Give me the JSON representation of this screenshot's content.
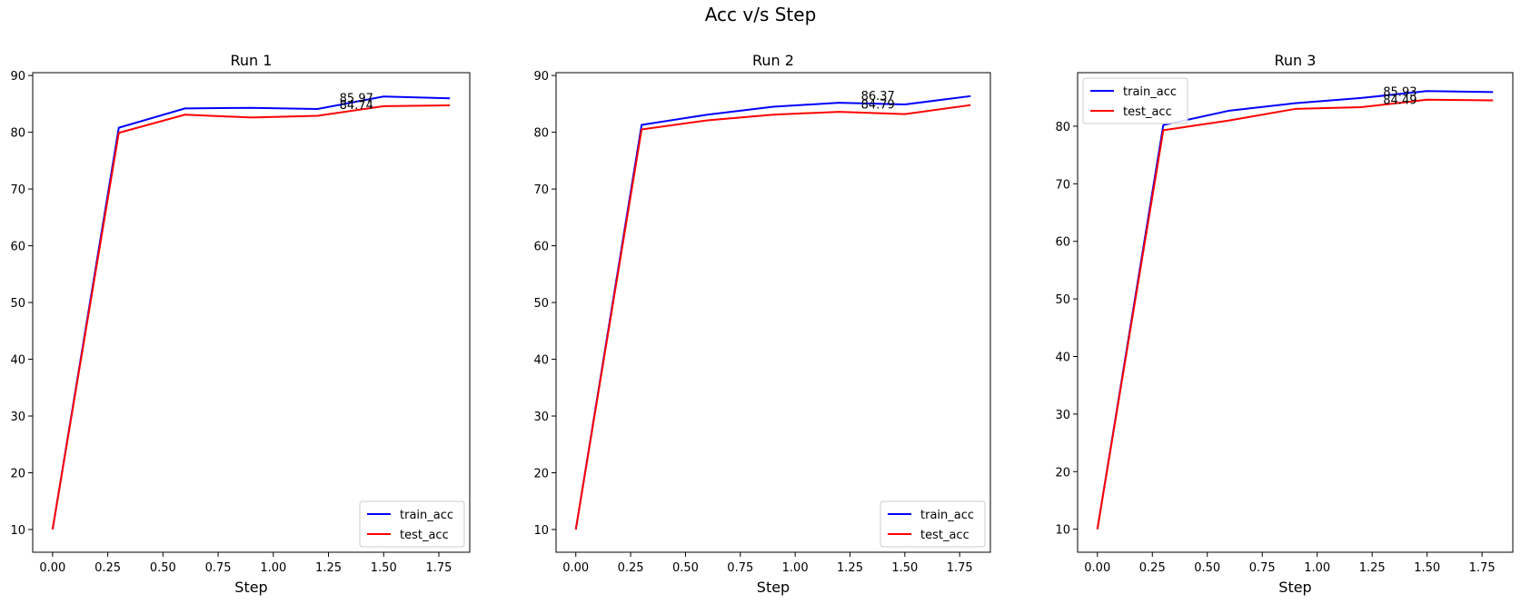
{
  "figure": {
    "suptitle": "Acc v/s Step"
  },
  "colors": {
    "train": "#0000ff",
    "test": "#ff0000",
    "axes": "#000000"
  },
  "chart_data": [
    {
      "type": "line",
      "title": "Run 1",
      "xlabel": "Step",
      "ylabel": "",
      "xlim": [
        -0.09,
        1.89
      ],
      "ylim": [
        6.0,
        90.5
      ],
      "xticks": [
        0.0,
        0.25,
        0.5,
        0.75,
        1.0,
        1.25,
        1.5,
        1.75
      ],
      "xtick_labels": [
        "0.00",
        "0.25",
        "0.50",
        "0.75",
        "1.00",
        "1.25",
        "1.50",
        "1.75"
      ],
      "yticks": [
        10,
        20,
        30,
        40,
        50,
        60,
        70,
        80,
        90
      ],
      "ytick_labels": [
        "10",
        "20",
        "30",
        "40",
        "50",
        "60",
        "70",
        "80",
        "90"
      ],
      "x": [
        0.0,
        0.3,
        0.6,
        0.9,
        1.2,
        1.5,
        1.8
      ],
      "series": [
        {
          "name": "train_acc",
          "color": "#0000ff",
          "values": [
            10.0,
            80.8,
            84.2,
            84.3,
            84.1,
            86.3,
            85.97
          ]
        },
        {
          "name": "test_acc",
          "color": "#ff0000",
          "values": [
            10.0,
            79.9,
            83.1,
            82.6,
            82.9,
            84.6,
            84.74
          ]
        }
      ],
      "annotations": [
        {
          "text": "85.97",
          "x": 1.3,
          "y": 85.97
        },
        {
          "text": "84.74",
          "x": 1.3,
          "y": 84.74
        }
      ],
      "legend": "lower-right",
      "grid": false
    },
    {
      "type": "line",
      "title": "Run 2",
      "xlabel": "Step",
      "ylabel": "",
      "xlim": [
        -0.09,
        1.89
      ],
      "ylim": [
        6.0,
        90.5
      ],
      "xticks": [
        0.0,
        0.25,
        0.5,
        0.75,
        1.0,
        1.25,
        1.5,
        1.75
      ],
      "xtick_labels": [
        "0.00",
        "0.25",
        "0.50",
        "0.75",
        "1.00",
        "1.25",
        "1.50",
        "1.75"
      ],
      "yticks": [
        10,
        20,
        30,
        40,
        50,
        60,
        70,
        80,
        90
      ],
      "ytick_labels": [
        "10",
        "20",
        "30",
        "40",
        "50",
        "60",
        "70",
        "80",
        "90"
      ],
      "x": [
        0.0,
        0.3,
        0.6,
        0.9,
        1.2,
        1.5,
        1.8
      ],
      "series": [
        {
          "name": "train_acc",
          "color": "#0000ff",
          "values": [
            10.0,
            81.3,
            83.1,
            84.5,
            85.2,
            84.9,
            86.37
          ]
        },
        {
          "name": "test_acc",
          "color": "#ff0000",
          "values": [
            10.0,
            80.5,
            82.1,
            83.1,
            83.6,
            83.2,
            84.79
          ]
        }
      ],
      "annotations": [
        {
          "text": "86.37",
          "x": 1.3,
          "y": 86.37
        },
        {
          "text": "84.79",
          "x": 1.3,
          "y": 84.79
        }
      ],
      "legend": "lower-right",
      "grid": false
    },
    {
      "type": "line",
      "title": "Run 3",
      "xlabel": "Step",
      "ylabel": "",
      "xlim": [
        -0.09,
        1.89
      ],
      "ylim": [
        6.0,
        89.3
      ],
      "xticks": [
        0.0,
        0.25,
        0.5,
        0.75,
        1.0,
        1.25,
        1.5,
        1.75
      ],
      "xtick_labels": [
        "0.00",
        "0.25",
        "0.50",
        "0.75",
        "1.00",
        "1.25",
        "1.50",
        "1.75"
      ],
      "yticks": [
        10,
        20,
        30,
        40,
        50,
        60,
        70,
        80
      ],
      "ytick_labels": [
        "10",
        "20",
        "30",
        "40",
        "50",
        "60",
        "70",
        "80"
      ],
      "x": [
        0.0,
        0.3,
        0.6,
        0.9,
        1.2,
        1.5,
        1.8
      ],
      "series": [
        {
          "name": "train_acc",
          "color": "#0000ff",
          "values": [
            10.0,
            80.2,
            82.7,
            84.0,
            84.9,
            86.1,
            85.93
          ]
        },
        {
          "name": "test_acc",
          "color": "#ff0000",
          "values": [
            10.0,
            79.3,
            81.0,
            83.0,
            83.3,
            84.6,
            84.49
          ]
        }
      ],
      "annotations": [
        {
          "text": "85.93",
          "x": 1.3,
          "y": 85.93
        },
        {
          "text": "84.49",
          "x": 1.3,
          "y": 84.49
        }
      ],
      "legend": "upper-left",
      "grid": false
    }
  ]
}
